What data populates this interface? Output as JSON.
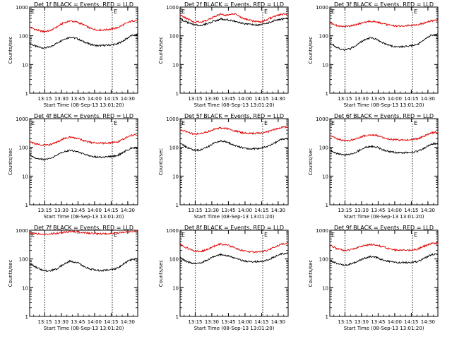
{
  "figure": {
    "colors": {
      "events": "#000000",
      "lld": "#e00000",
      "axes": "#000000",
      "marker": "#000000"
    }
  },
  "chart_data": [
    {
      "type": "line",
      "title": "Det 1f BLACK = Events, RED = LLD",
      "xlabel": "Start Time (08-Sep-13 13:01:20)",
      "ylabel": "Counts/sec",
      "yscale": "log",
      "ylim": [
        1,
        1000
      ],
      "x_ticks": [
        "13:15",
        "13:30",
        "13:45",
        "14:00",
        "14:15",
        "14:30"
      ],
      "y_ticks": [
        "1",
        "10",
        "100",
        "1000"
      ],
      "markers": [
        {
          "time": "13:15",
          "style": "dotted"
        },
        {
          "time": "14:16",
          "style": "dotted"
        }
      ],
      "flag_labels": [
        "E"
      ],
      "series": [
        {
          "name": "Events",
          "color": "#000000",
          "values": [
            55,
            42,
            38,
            40,
            55,
            75,
            90,
            80,
            62,
            50,
            45,
            46,
            48,
            52,
            70,
            100,
            110
          ]
        },
        {
          "name": "LLD",
          "color": "#e00000",
          "values": [
            200,
            160,
            140,
            150,
            200,
            280,
            330,
            300,
            240,
            180,
            160,
            160,
            170,
            190,
            250,
            320,
            350
          ]
        }
      ]
    },
    {
      "type": "line",
      "title": "Det 2f BLACK = Events, RED = LLD",
      "xlabel": "Start Time (08-Sep-13 13:01:20)",
      "ylabel": "Counts/sec",
      "yscale": "log",
      "ylim": [
        1,
        1000
      ],
      "x_ticks": [
        "13:15",
        "13:30",
        "13:45",
        "14:00",
        "14:15",
        "14:30"
      ],
      "y_ticks": [
        "1",
        "10",
        "100",
        "1000"
      ],
      "markers": [
        {
          "time": "13:15",
          "style": "dotted"
        },
        {
          "time": "14:16",
          "style": "dotted"
        }
      ],
      "flag_labels": [
        "E"
      ],
      "series": [
        {
          "name": "Events",
          "color": "#000000",
          "values": [
            380,
            300,
            240,
            230,
            260,
            320,
            380,
            360,
            320,
            280,
            250,
            240,
            240,
            280,
            340,
            380,
            400
          ]
        },
        {
          "name": "LLD",
          "color": "#e00000",
          "values": [
            520,
            400,
            310,
            300,
            340,
            460,
            560,
            520,
            600,
            440,
            360,
            320,
            300,
            380,
            470,
            560,
            580
          ]
        }
      ]
    },
    {
      "type": "line",
      "title": "Det 3f BLACK = Events, RED = LLD",
      "xlabel": "Start Time (08-Sep-13 13:01:20)",
      "ylabel": "Counts/sec",
      "yscale": "log",
      "ylim": [
        1,
        1000
      ],
      "x_ticks": [
        "13:15",
        "13:30",
        "13:45",
        "14:00",
        "14:15",
        "14:30"
      ],
      "y_ticks": [
        "1",
        "10",
        "100",
        "1000"
      ],
      "markers": [
        {
          "time": "13:15",
          "style": "dotted"
        },
        {
          "time": "14:16",
          "style": "dotted"
        }
      ],
      "flag_labels": [
        "E"
      ],
      "series": [
        {
          "name": "Events",
          "color": "#000000",
          "values": [
            55,
            40,
            32,
            35,
            48,
            70,
            85,
            75,
            55,
            45,
            40,
            42,
            45,
            50,
            75,
            105,
            110
          ]
        },
        {
          "name": "LLD",
          "color": "#e00000",
          "values": [
            280,
            230,
            210,
            220,
            250,
            290,
            320,
            300,
            260,
            230,
            220,
            220,
            230,
            240,
            280,
            330,
            350
          ]
        }
      ]
    },
    {
      "type": "line",
      "title": "Det 4f BLACK = Events, RED = LLD",
      "xlabel": "Start Time (08-Sep-13 13:01:20)",
      "ylabel": "Counts/sec",
      "yscale": "log",
      "ylim": [
        1,
        1000
      ],
      "x_ticks": [
        "13:15",
        "13:30",
        "13:45",
        "14:00",
        "14:15",
        "14:30"
      ],
      "y_ticks": [
        "1",
        "10",
        "100",
        "1000"
      ],
      "markers": [
        {
          "time": "13:15",
          "style": "dotted"
        },
        {
          "time": "14:16",
          "style": "dotted"
        }
      ],
      "flag_labels": [
        "E"
      ],
      "series": [
        {
          "name": "Events",
          "color": "#000000",
          "values": [
            55,
            42,
            38,
            40,
            52,
            70,
            80,
            72,
            58,
            50,
            46,
            46,
            48,
            52,
            70,
            95,
            100
          ]
        },
        {
          "name": "LLD",
          "color": "#e00000",
          "values": [
            160,
            130,
            120,
            125,
            150,
            200,
            230,
            210,
            170,
            150,
            140,
            140,
            145,
            155,
            200,
            260,
            280
          ]
        }
      ]
    },
    {
      "type": "line",
      "title": "Det 5f BLACK = Events, RED = LLD",
      "xlabel": "Start Time (08-Sep-13 13:01:20)",
      "ylabel": "Counts/sec",
      "yscale": "log",
      "ylim": [
        1,
        1000
      ],
      "x_ticks": [
        "13:15",
        "13:30",
        "13:45",
        "14:00",
        "14:15",
        "14:30"
      ],
      "y_ticks": [
        "1",
        "10",
        "100",
        "1000"
      ],
      "markers": [
        {
          "time": "13:15",
          "style": "dotted"
        },
        {
          "time": "14:16",
          "style": "dotted"
        }
      ],
      "flag_labels": [
        "E"
      ],
      "series": [
        {
          "name": "Events",
          "color": "#000000",
          "values": [
            140,
            100,
            80,
            80,
            100,
            140,
            170,
            150,
            120,
            100,
            90,
            90,
            95,
            110,
            140,
            190,
            200
          ]
        },
        {
          "name": "LLD",
          "color": "#e00000",
          "values": [
            420,
            340,
            290,
            300,
            340,
            420,
            470,
            450,
            380,
            330,
            310,
            310,
            320,
            350,
            420,
            500,
            520
          ]
        }
      ]
    },
    {
      "type": "line",
      "title": "Det 6f BLACK = Events, RED = LLD",
      "xlabel": "Start Time (08-Sep-13 13:01:20)",
      "ylabel": "Counts/sec",
      "yscale": "log",
      "ylim": [
        1,
        1000
      ],
      "x_ticks": [
        "13:15",
        "13:30",
        "13:45",
        "14:00",
        "14:15",
        "14:30"
      ],
      "y_ticks": [
        "1",
        "10",
        "100",
        "1000"
      ],
      "markers": [
        {
          "time": "13:15",
          "style": "dotted"
        },
        {
          "time": "14:16",
          "style": "dotted"
        }
      ],
      "flag_labels": [
        "E"
      ],
      "series": [
        {
          "name": "Events",
          "color": "#000000",
          "values": [
            80,
            62,
            55,
            58,
            70,
            95,
            110,
            100,
            80,
            70,
            65,
            65,
            68,
            72,
            95,
            130,
            140
          ]
        },
        {
          "name": "LLD",
          "color": "#e00000",
          "values": [
            260,
            200,
            170,
            175,
            200,
            250,
            280,
            260,
            220,
            190,
            180,
            180,
            185,
            200,
            250,
            320,
            340
          ]
        }
      ]
    },
    {
      "type": "line",
      "title": "Det 7f BLACK = Events, RED = LLD",
      "xlabel": "Start Time (08-Sep-13 13:01:20)",
      "ylabel": "Counts/sec",
      "yscale": "log",
      "ylim": [
        1,
        1000
      ],
      "x_ticks": [
        "13:15",
        "13:30",
        "13:45",
        "14:00",
        "14:15",
        "14:30"
      ],
      "y_ticks": [
        "1",
        "10",
        "100",
        "1000"
      ],
      "markers": [
        {
          "time": "13:15",
          "style": "dotted"
        },
        {
          "time": "14:16",
          "style": "dotted"
        }
      ],
      "flag_labels": [
        "E"
      ],
      "series": [
        {
          "name": "Events",
          "color": "#000000",
          "values": [
            70,
            50,
            40,
            38,
            45,
            65,
            85,
            75,
            55,
            45,
            40,
            40,
            42,
            48,
            70,
            95,
            100
          ]
        },
        {
          "name": "LLD",
          "color": "#e00000",
          "values": [
            820,
            760,
            720,
            740,
            780,
            850,
            900,
            880,
            820,
            780,
            760,
            760,
            770,
            800,
            860,
            920,
            950
          ]
        }
      ]
    },
    {
      "type": "line",
      "title": "Det 8f BLACK = Events, RED = LLD",
      "xlabel": "Start Time (08-Sep-13 13:01:20)",
      "ylabel": "Counts/sec",
      "yscale": "log",
      "ylim": [
        1,
        1000
      ],
      "x_ticks": [
        "13:15",
        "13:30",
        "13:45",
        "14:00",
        "14:15",
        "14:30"
      ],
      "y_ticks": [
        "1",
        "10",
        "100",
        "1000"
      ],
      "markers": [
        {
          "time": "13:15",
          "style": "dotted"
        },
        {
          "time": "14:16",
          "style": "dotted"
        }
      ],
      "flag_labels": [
        "E"
      ],
      "series": [
        {
          "name": "Events",
          "color": "#000000",
          "values": [
            110,
            80,
            70,
            72,
            90,
            120,
            140,
            130,
            110,
            90,
            80,
            80,
            82,
            90,
            120,
            150,
            160
          ]
        },
        {
          "name": "LLD",
          "color": "#e00000",
          "values": [
            320,
            240,
            190,
            180,
            210,
            280,
            330,
            300,
            250,
            200,
            180,
            175,
            180,
            200,
            260,
            330,
            350
          ]
        }
      ]
    },
    {
      "type": "line",
      "title": "Det 9f BLACK = Events, RED = LLD",
      "xlabel": "Start Time (08-Sep-13 13:01:20)",
      "ylabel": "Counts/sec",
      "yscale": "log",
      "ylim": [
        1,
        1000
      ],
      "x_ticks": [
        "13:15",
        "13:30",
        "13:45",
        "14:00",
        "14:15",
        "14:30"
      ],
      "y_ticks": [
        "1",
        "10",
        "100",
        "1000"
      ],
      "markers": [
        {
          "time": "13:15",
          "style": "dotted"
        },
        {
          "time": "14:16",
          "style": "dotted"
        }
      ],
      "flag_labels": [
        "E"
      ],
      "series": [
        {
          "name": "Events",
          "color": "#000000",
          "values": [
            90,
            70,
            62,
            65,
            80,
            105,
            120,
            110,
            90,
            80,
            75,
            74,
            75,
            80,
            105,
            140,
            150
          ]
        },
        {
          "name": "LLD",
          "color": "#e00000",
          "values": [
            300,
            230,
            200,
            205,
            240,
            290,
            320,
            300,
            260,
            220,
            200,
            200,
            205,
            220,
            280,
            340,
            360
          ]
        }
      ]
    }
  ]
}
